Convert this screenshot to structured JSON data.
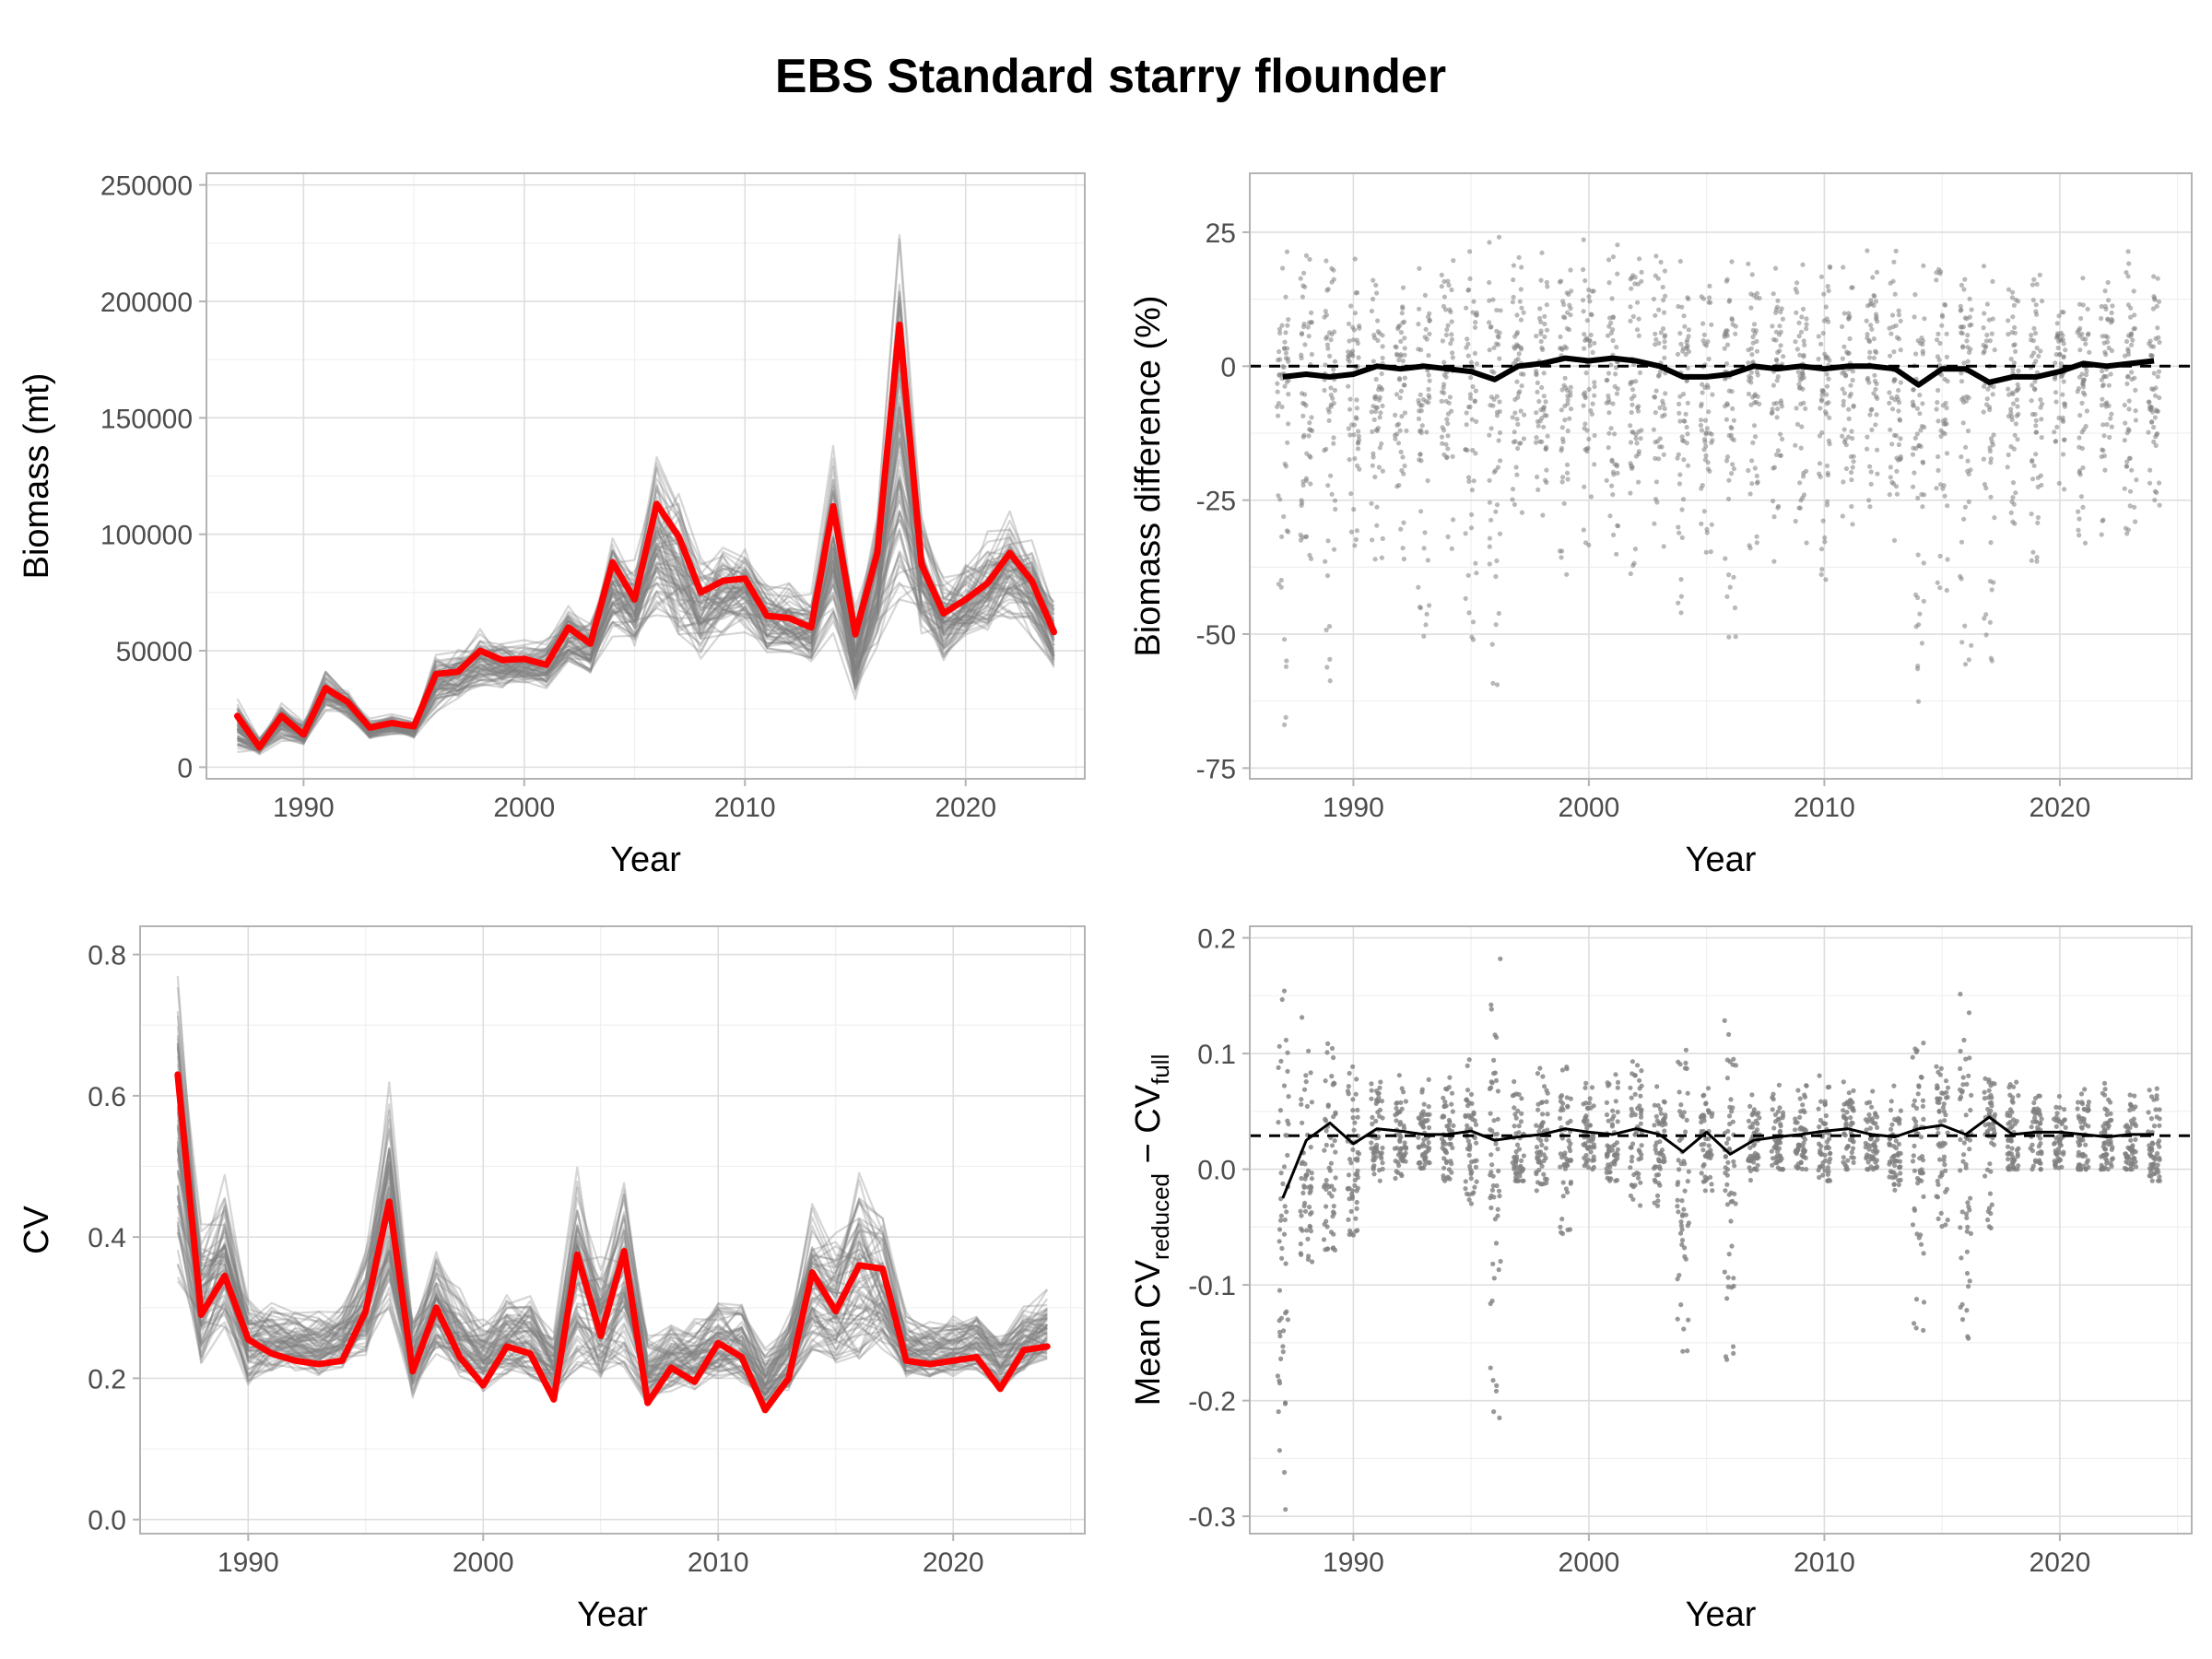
{
  "title": "EBS Standard starry flounder",
  "chart_data": [
    {
      "id": "biomass",
      "type": "line",
      "xlabel": "Year",
      "ylabel": "Biomass (mt)",
      "xlim": [
        1985.6,
        2025.4
      ],
      "ylim": [
        -5000,
        255000
      ],
      "xticks": [
        1990,
        2000,
        2010,
        2020
      ],
      "yticks": [
        0,
        50000,
        100000,
        150000,
        200000,
        250000
      ],
      "ytick_labels": [
        "0",
        "50000",
        "100000",
        "150000",
        "200000",
        "250000"
      ],
      "x": [
        1987,
        1988,
        1989,
        1990,
        1991,
        1992,
        1993,
        1994,
        1995,
        1996,
        1997,
        1998,
        1999,
        2000,
        2001,
        2002,
        2003,
        2004,
        2005,
        2006,
        2007,
        2008,
        2009,
        2010,
        2011,
        2012,
        2013,
        2014,
        2015,
        2016,
        2017,
        2018,
        2019,
        2020,
        2021,
        2022,
        2023,
        2024
      ],
      "series": [
        {
          "role": "full",
          "color": "#ff0000",
          "values": [
            22000,
            8500,
            22000,
            14000,
            34000,
            28000,
            17000,
            19000,
            17500,
            40000,
            41000,
            50000,
            46000,
            46500,
            44000,
            60000,
            53000,
            88000,
            72000,
            113000,
            99000,
            75000,
            80000,
            81000,
            65000,
            64000,
            60000,
            112000,
            57000,
            92000,
            190000,
            87000,
            66000,
            72000,
            79000,
            92000,
            80000,
            58000
          ]
        },
        {
          "role": "band_high",
          "color": "#7f7f7f",
          "values": [
            31000,
            13000,
            30000,
            20000,
            43000,
            33000,
            21000,
            23000,
            21000,
            52000,
            51000,
            60000,
            55000,
            55000,
            56000,
            70000,
            65000,
            108000,
            90000,
            140000,
            120000,
            96000,
            100000,
            101000,
            82000,
            80000,
            75000,
            142000,
            72000,
            112000,
            240000,
            115000,
            86000,
            92000,
            102000,
            112000,
            101000,
            75000
          ]
        },
        {
          "role": "band_low",
          "color": "#7f7f7f",
          "values": [
            6000,
            5000,
            11000,
            9000,
            24000,
            21000,
            12000,
            14000,
            12000,
            23000,
            29000,
            34000,
            34000,
            35000,
            33000,
            44000,
            40000,
            55000,
            50000,
            62000,
            52000,
            46000,
            56000,
            57000,
            47000,
            48000,
            45000,
            53000,
            26000,
            48000,
            58000,
            55000,
            44000,
            51000,
            58000,
            63000,
            55000,
            42000
          ]
        }
      ]
    },
    {
      "id": "biomass_diff",
      "type": "scatter",
      "xlabel": "Year",
      "ylabel": "Biomass difference (%)",
      "xlim": [
        1985.6,
        2025.6
      ],
      "ylim": [
        -77,
        36
      ],
      "xticks": [
        1990,
        2000,
        2010,
        2020
      ],
      "yticks": [
        -75,
        -50,
        -25,
        0,
        25
      ],
      "ytick_labels": [
        "-75",
        "-50",
        "-25",
        "0",
        "25"
      ],
      "reference_line": 0,
      "x": [
        1987,
        1988,
        1989,
        1990,
        1991,
        1992,
        1993,
        1994,
        1995,
        1996,
        1997,
        1998,
        1999,
        2000,
        2001,
        2002,
        2003,
        2004,
        2005,
        2006,
        2007,
        2008,
        2009,
        2010,
        2011,
        2012,
        2013,
        2014,
        2015,
        2016,
        2017,
        2018,
        2019,
        2020,
        2021,
        2022,
        2023,
        2024
      ],
      "mean_values": [
        -2,
        -1.5,
        -2,
        -1.5,
        0,
        -0.5,
        0,
        -0.5,
        -1,
        -2.5,
        0,
        0.5,
        1.5,
        1,
        1.5,
        1,
        0,
        -2,
        -2,
        -1.5,
        0,
        -0.5,
        0,
        -0.5,
        0,
        0,
        -0.5,
        -3.5,
        -0.5,
        -0.5,
        -3,
        -2,
        -2,
        -1,
        0.5,
        0,
        0.5,
        1
      ],
      "point_upper": [
        30,
        27,
        26,
        22,
        22,
        22,
        23,
        25,
        25,
        27,
        23,
        23,
        24,
        24,
        24,
        23,
        23,
        24,
        24,
        25,
        21,
        21,
        22,
        22,
        22,
        24,
        23,
        25,
        25,
        24,
        22,
        20,
        19,
        16,
        20,
        20,
        24,
        24
      ],
      "point_lower": [
        -73,
        -47,
        -62,
        -35,
        -37,
        -38,
        -52,
        -39,
        -58,
        -62,
        -28,
        -30,
        -40,
        -34,
        -36,
        -39,
        -38,
        -52,
        -39,
        -52,
        -35,
        -37,
        -33,
        -40,
        -30,
        -28,
        -35,
        -65,
        -42,
        -56,
        -62,
        -32,
        -38,
        -27,
        -35,
        -33,
        -32,
        -28
      ]
    },
    {
      "id": "cv",
      "type": "line",
      "xlabel": "Year",
      "ylabel": "CV",
      "xlim": [
        1985.4,
        2025.6
      ],
      "ylim": [
        -0.02,
        0.84
      ],
      "xticks": [
        1990,
        2000,
        2010,
        2020
      ],
      "yticks": [
        0,
        0.2,
        0.4,
        0.6,
        0.8
      ],
      "ytick_labels": [
        "0.0",
        "0.2",
        "0.4",
        "0.6",
        "0.8"
      ],
      "x": [
        1987,
        1988,
        1989,
        1990,
        1991,
        1992,
        1993,
        1994,
        1995,
        1996,
        1997,
        1998,
        1999,
        2000,
        2001,
        2002,
        2003,
        2004,
        2005,
        2006,
        2007,
        2008,
        2009,
        2010,
        2011,
        2012,
        2013,
        2014,
        2015,
        2016,
        2017,
        2018,
        2019,
        2020,
        2021,
        2022,
        2023,
        2024
      ],
      "series": [
        {
          "role": "full",
          "color": "#ff0000",
          "values": [
            0.63,
            0.29,
            0.345,
            0.255,
            0.235,
            0.225,
            0.22,
            0.225,
            0.295,
            0.45,
            0.21,
            0.3,
            0.23,
            0.19,
            0.245,
            0.235,
            0.17,
            0.375,
            0.26,
            0.38,
            0.165,
            0.215,
            0.195,
            0.25,
            0.23,
            0.155,
            0.2,
            0.35,
            0.295,
            0.36,
            0.355,
            0.225,
            0.22,
            0.225,
            0.23,
            0.185,
            0.24,
            0.245
          ]
        },
        {
          "role": "band_high",
          "color": "#7f7f7f",
          "values": [
            0.82,
            0.43,
            0.49,
            0.33,
            0.31,
            0.3,
            0.3,
            0.31,
            0.39,
            0.63,
            0.3,
            0.39,
            0.33,
            0.29,
            0.33,
            0.33,
            0.27,
            0.51,
            0.38,
            0.52,
            0.27,
            0.29,
            0.29,
            0.32,
            0.32,
            0.25,
            0.29,
            0.47,
            0.41,
            0.52,
            0.46,
            0.3,
            0.29,
            0.29,
            0.3,
            0.27,
            0.31,
            0.33
          ]
        },
        {
          "role": "band_low",
          "color": "#7f7f7f",
          "values": [
            0.33,
            0.22,
            0.27,
            0.19,
            0.21,
            0.21,
            0.2,
            0.21,
            0.23,
            0.29,
            0.17,
            0.23,
            0.2,
            0.18,
            0.2,
            0.2,
            0.17,
            0.21,
            0.19,
            0.2,
            0.16,
            0.18,
            0.18,
            0.19,
            0.19,
            0.15,
            0.18,
            0.22,
            0.22,
            0.22,
            0.23,
            0.2,
            0.2,
            0.2,
            0.21,
            0.18,
            0.21,
            0.22
          ]
        }
      ]
    },
    {
      "id": "cv_diff",
      "type": "scatter",
      "xlabel": "Year",
      "ylabel": {
        "main": "Mean CV",
        "sub1": "reduced",
        "sep": " − CV",
        "sub2": "full"
      },
      "xlim": [
        1985.6,
        2025.6
      ],
      "ylim": [
        -0.315,
        0.21
      ],
      "xticks": [
        1990,
        2000,
        2010,
        2020
      ],
      "yticks": [
        -0.3,
        -0.2,
        -0.1,
        0,
        0.1,
        0.2
      ],
      "ytick_labels": [
        "-0.3",
        "-0.2",
        "-0.1",
        "0.0",
        "0.1",
        "0.2"
      ],
      "reference_line": 0.029,
      "x": [
        1987,
        1988,
        1989,
        1990,
        1991,
        1992,
        1993,
        1994,
        1995,
        1996,
        1997,
        1998,
        1999,
        2000,
        2001,
        2002,
        2003,
        2004,
        2005,
        2006,
        2007,
        2008,
        2009,
        2010,
        2011,
        2012,
        2013,
        2014,
        2015,
        2016,
        2017,
        2018,
        2019,
        2020,
        2021,
        2022,
        2023,
        2024
      ],
      "mean_values": [
        -0.025,
        0.025,
        0.04,
        0.022,
        0.035,
        0.033,
        0.03,
        0.03,
        0.033,
        0.025,
        0.028,
        0.03,
        0.035,
        0.032,
        0.03,
        0.035,
        0.03,
        0.015,
        0.032,
        0.013,
        0.025,
        0.028,
        0.03,
        0.033,
        0.035,
        0.03,
        0.028,
        0.035,
        0.038,
        0.03,
        0.045,
        0.03,
        0.032,
        0.032,
        0.03,
        0.028,
        0.03,
        0.03
      ],
      "point_upper": [
        0.19,
        0.15,
        0.14,
        0.11,
        0.09,
        0.09,
        0.08,
        0.09,
        0.1,
        0.19,
        0.09,
        0.09,
        0.1,
        0.08,
        0.09,
        0.1,
        0.08,
        0.15,
        0.08,
        0.14,
        0.07,
        0.08,
        0.08,
        0.09,
        0.08,
        0.07,
        0.08,
        0.13,
        0.11,
        0.17,
        0.09,
        0.08,
        0.08,
        0.07,
        0.08,
        0.08,
        0.08,
        0.09
      ],
      "point_lower": [
        -0.3,
        -0.08,
        -0.07,
        -0.06,
        -0.01,
        -0.01,
        0.0,
        -0.01,
        -0.03,
        -0.22,
        -0.01,
        -0.02,
        -0.06,
        0.0,
        -0.01,
        -0.04,
        -0.04,
        -0.18,
        -0.02,
        -0.17,
        -0.01,
        0.0,
        0.0,
        -0.01,
        0.0,
        0.0,
        -0.02,
        -0.14,
        -0.05,
        -0.17,
        -0.06,
        0.0,
        0.0,
        0.0,
        0.0,
        0.0,
        0.0,
        -0.01
      ]
    }
  ]
}
